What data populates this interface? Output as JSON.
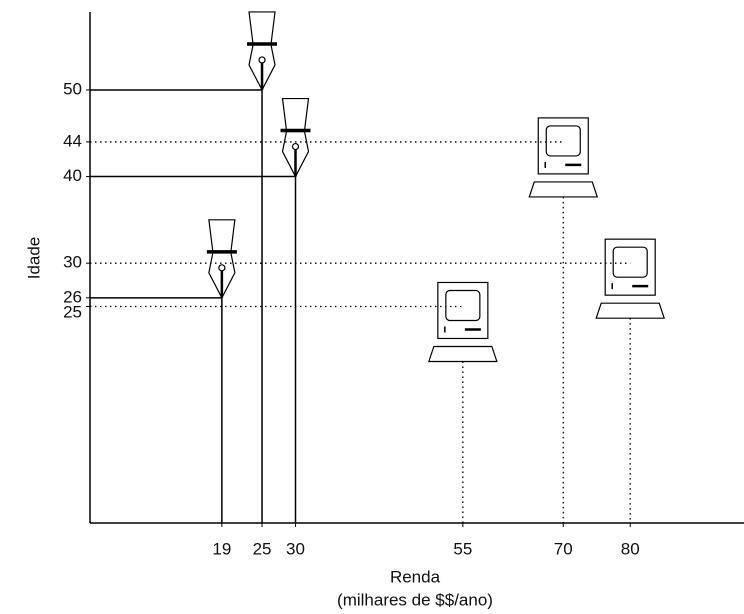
{
  "chart_data": {
    "type": "scatter",
    "xlabel": [
      "Renda",
      "(milhares de $$/ano)"
    ],
    "ylabel": "Idade",
    "xlim": [
      -0.7,
      97
    ],
    "ylim": [
      0,
      59
    ],
    "xticks": [
      19,
      25,
      30,
      55,
      70,
      80
    ],
    "yticks": [
      25,
      26,
      30,
      40,
      44,
      50
    ],
    "grid": false,
    "series": [
      {
        "marker": "pen",
        "guide": "solid",
        "color": "#000000",
        "x": [
          19,
          25,
          30
        ],
        "values": [
          26,
          50,
          40
        ]
      },
      {
        "marker": "computer",
        "guide": "dotted",
        "color": "#000000",
        "x": [
          55,
          70,
          80
        ],
        "values": [
          25,
          44,
          30
        ]
      }
    ]
  }
}
